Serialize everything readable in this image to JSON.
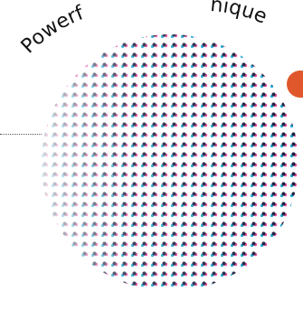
{
  "arc_text": {
    "left": "Powerf",
    "right": "nique"
  },
  "colors": {
    "accent": "#e0572b",
    "dot_dark": "#1d1f3f",
    "dot_magenta": "#e64a9c",
    "dot_cyan": "#1aa8d8",
    "leader": "#555555"
  },
  "graphic": {
    "kind": "halftone-circle"
  }
}
